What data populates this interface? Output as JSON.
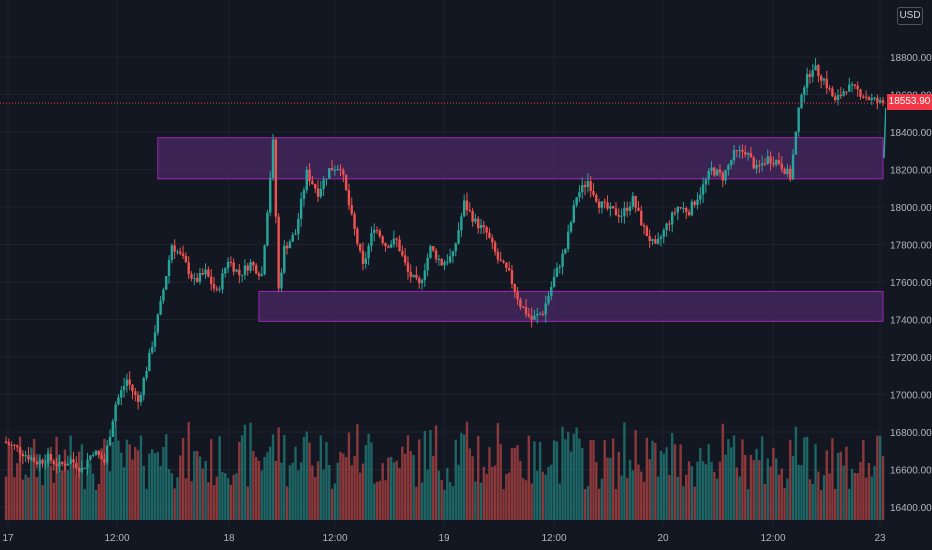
{
  "currency_label": "USD",
  "last_price_label": "18553.90",
  "colors": {
    "background": "#131722",
    "grid": "#1e222d",
    "up": "#26a69a",
    "down": "#ef5350",
    "zone_fill": "#4a2866",
    "zone_stroke": "#9c27b0",
    "price_line": "#f23645",
    "axis_text": "#b2b5be",
    "projection": "#26a69a"
  },
  "chart_data": {
    "type": "candlestick",
    "title": "",
    "y_axis": {
      "ticks": [
        16400,
        16600,
        16800,
        17000,
        17200,
        17400,
        17600,
        17800,
        18000,
        18200,
        18400,
        18600,
        18800
      ],
      "tick_labels": [
        "16400.00",
        "16600.00",
        "16800.00",
        "17000.00",
        "17200.00",
        "17400.00",
        "17600.00",
        "17800.00",
        "18000.00",
        "18200.00",
        "18400.00",
        "18600.00",
        "18800.00"
      ],
      "range": [
        16340,
        19000
      ]
    },
    "x_axis": {
      "labels": [
        "17",
        "12:00",
        "18",
        "12:00",
        "19",
        "12:00",
        "20",
        "12:00",
        "23"
      ],
      "range_hours": [
        0,
        156
      ]
    },
    "last_price": 18553.9,
    "zones": [
      {
        "name": "resistance-zone",
        "x_start_hour": 27,
        "x_end_hour": 156,
        "y_low": 18150,
        "y_high": 18370
      },
      {
        "name": "support-zone",
        "x_start_hour": 45,
        "x_end_hour": 160,
        "y_low": 17390,
        "y_high": 17550
      }
    ],
    "projection": {
      "from": [
        156.5,
        18530
      ],
      "to": [
        160,
        18260
      ]
    },
    "price_path": [
      [
        0,
        16750
      ],
      [
        2,
        16720
      ],
      [
        4,
        16680
      ],
      [
        6,
        16640
      ],
      [
        8,
        16660
      ],
      [
        10,
        16620
      ],
      [
        12,
        16650
      ],
      [
        14,
        16600
      ],
      [
        16,
        16700
      ],
      [
        18,
        16640
      ],
      [
        20,
        16950
      ],
      [
        22,
        17080
      ],
      [
        24,
        16960
      ],
      [
        26,
        17200
      ],
      [
        28,
        17480
      ],
      [
        30,
        17800
      ],
      [
        32,
        17720
      ],
      [
        34,
        17600
      ],
      [
        36,
        17650
      ],
      [
        38,
        17540
      ],
      [
        40,
        17720
      ],
      [
        42,
        17640
      ],
      [
        44,
        17700
      ],
      [
        46,
        17640
      ],
      [
        48,
        18340
      ],
      [
        49,
        17560
      ],
      [
        50,
        17780
      ],
      [
        52,
        17860
      ],
      [
        54,
        18180
      ],
      [
        56,
        18080
      ],
      [
        58,
        18200
      ],
      [
        60,
        18220
      ],
      [
        62,
        17940
      ],
      [
        64,
        17680
      ],
      [
        66,
        17900
      ],
      [
        68,
        17800
      ],
      [
        70,
        17820
      ],
      [
        72,
        17650
      ],
      [
        74,
        17580
      ],
      [
        76,
        17780
      ],
      [
        78,
        17700
      ],
      [
        80,
        17740
      ],
      [
        82,
        18020
      ],
      [
        84,
        17920
      ],
      [
        86,
        17860
      ],
      [
        88,
        17720
      ],
      [
        90,
        17640
      ],
      [
        92,
        17480
      ],
      [
        94,
        17400
      ],
      [
        96,
        17440
      ],
      [
        98,
        17620
      ],
      [
        100,
        17780
      ],
      [
        102,
        18060
      ],
      [
        104,
        18140
      ],
      [
        106,
        18020
      ],
      [
        108,
        17980
      ],
      [
        110,
        17960
      ],
      [
        112,
        18040
      ],
      [
        114,
        17880
      ],
      [
        116,
        17780
      ],
      [
        118,
        17900
      ],
      [
        120,
        18000
      ],
      [
        122,
        17980
      ],
      [
        124,
        18080
      ],
      [
        126,
        18200
      ],
      [
        128,
        18160
      ],
      [
        130,
        18280
      ],
      [
        132,
        18300
      ],
      [
        134,
        18200
      ],
      [
        136,
        18260
      ],
      [
        138,
        18240
      ],
      [
        140,
        18160
      ],
      [
        142,
        18620
      ],
      [
        144,
        18750
      ],
      [
        146,
        18680
      ],
      [
        148,
        18560
      ],
      [
        150,
        18640
      ],
      [
        152,
        18620
      ],
      [
        154,
        18580
      ],
      [
        156,
        18554
      ]
    ]
  }
}
